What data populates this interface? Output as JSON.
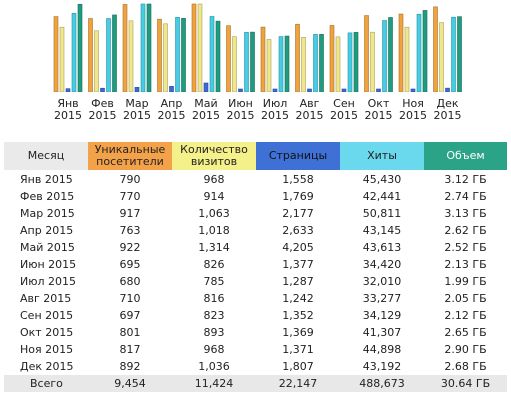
{
  "chart_data": {
    "type": "bar",
    "categories": [
      [
        "Янв",
        "2015"
      ],
      [
        "Фев",
        "2015"
      ],
      [
        "Мар",
        "2015"
      ],
      [
        "Апр",
        "2015"
      ],
      [
        "Май",
        "2015"
      ],
      [
        "Июн",
        "2015"
      ],
      [
        "Июл",
        "2015"
      ],
      [
        "Авг",
        "2015"
      ],
      [
        "Сен",
        "2015"
      ],
      [
        "Окт",
        "2015"
      ],
      [
        "Ноя",
        "2015"
      ],
      [
        "Дек",
        "2015"
      ]
    ],
    "series": [
      {
        "key": "unique_visitors",
        "color": "#f0a23c",
        "values": [
          790,
          770,
          917,
          763,
          922,
          695,
          680,
          710,
          697,
          801,
          817,
          892
        ]
      },
      {
        "key": "visits",
        "color": "#f0e68a",
        "values": [
          968,
          914,
          1063,
          1018,
          1314,
          826,
          785,
          816,
          823,
          893,
          968,
          1036
        ]
      },
      {
        "key": "pages",
        "color": "#3c68d8",
        "values": [
          1558,
          1769,
          2177,
          2633,
          4205,
          1377,
          1287,
          1242,
          1352,
          1369,
          1371,
          1807
        ]
      },
      {
        "key": "hits",
        "color": "#45cde6",
        "values": [
          45430,
          42441,
          50811,
          43145,
          43613,
          34420,
          32010,
          33277,
          34129,
          41307,
          44898,
          43192
        ]
      },
      {
        "key": "bandwidth_gb",
        "color": "#1f9c80",
        "values": [
          3.12,
          2.74,
          3.13,
          2.62,
          2.52,
          2.13,
          1.99,
          2.05,
          2.12,
          2.65,
          2.9,
          2.68
        ]
      }
    ]
  },
  "table": {
    "headers": {
      "month": "Месяц",
      "unique": [
        "Уникальные",
        "посетители"
      ],
      "visits": [
        "Количество",
        "визитов"
      ],
      "pages": "Страницы",
      "hits": "Хиты",
      "bandwidth": "Объем"
    },
    "rows": [
      {
        "month": "Янв 2015",
        "unique": "790",
        "visits": "968",
        "pages": "1,558",
        "hits": "45,430",
        "bw": "3.12 ГБ"
      },
      {
        "month": "Фев 2015",
        "unique": "770",
        "visits": "914",
        "pages": "1,769",
        "hits": "42,441",
        "bw": "2.74 ГБ"
      },
      {
        "month": "Мар 2015",
        "unique": "917",
        "visits": "1,063",
        "pages": "2,177",
        "hits": "50,811",
        "bw": "3.13 ГБ"
      },
      {
        "month": "Апр 2015",
        "unique": "763",
        "visits": "1,018",
        "pages": "2,633",
        "hits": "43,145",
        "bw": "2.62 ГБ"
      },
      {
        "month": "Май 2015",
        "unique": "922",
        "visits": "1,314",
        "pages": "4,205",
        "hits": "43,613",
        "bw": "2.52 ГБ"
      },
      {
        "month": "Июн 2015",
        "unique": "695",
        "visits": "826",
        "pages": "1,377",
        "hits": "34,420",
        "bw": "2.13 ГБ"
      },
      {
        "month": "Июл 2015",
        "unique": "680",
        "visits": "785",
        "pages": "1,287",
        "hits": "32,010",
        "bw": "1.99 ГБ"
      },
      {
        "month": "Авг 2015",
        "unique": "710",
        "visits": "816",
        "pages": "1,242",
        "hits": "33,277",
        "bw": "2.05 ГБ"
      },
      {
        "month": "Сен 2015",
        "unique": "697",
        "visits": "823",
        "pages": "1,352",
        "hits": "34,129",
        "bw": "2.12 ГБ"
      },
      {
        "month": "Окт 2015",
        "unique": "801",
        "visits": "893",
        "pages": "1,369",
        "hits": "41,307",
        "bw": "2.65 ГБ"
      },
      {
        "month": "Ноя 2015",
        "unique": "817",
        "visits": "968",
        "pages": "1,371",
        "hits": "44,898",
        "bw": "2.90 ГБ"
      },
      {
        "month": "Дек 2015",
        "unique": "892",
        "visits": "1,036",
        "pages": "1,807",
        "hits": "43,192",
        "bw": "2.68 ГБ"
      }
    ],
    "total": {
      "month": "Всего",
      "unique": "9,454",
      "visits": "11,424",
      "pages": "22,147",
      "hits": "488,673",
      "bw": "30.64 ГБ"
    }
  }
}
